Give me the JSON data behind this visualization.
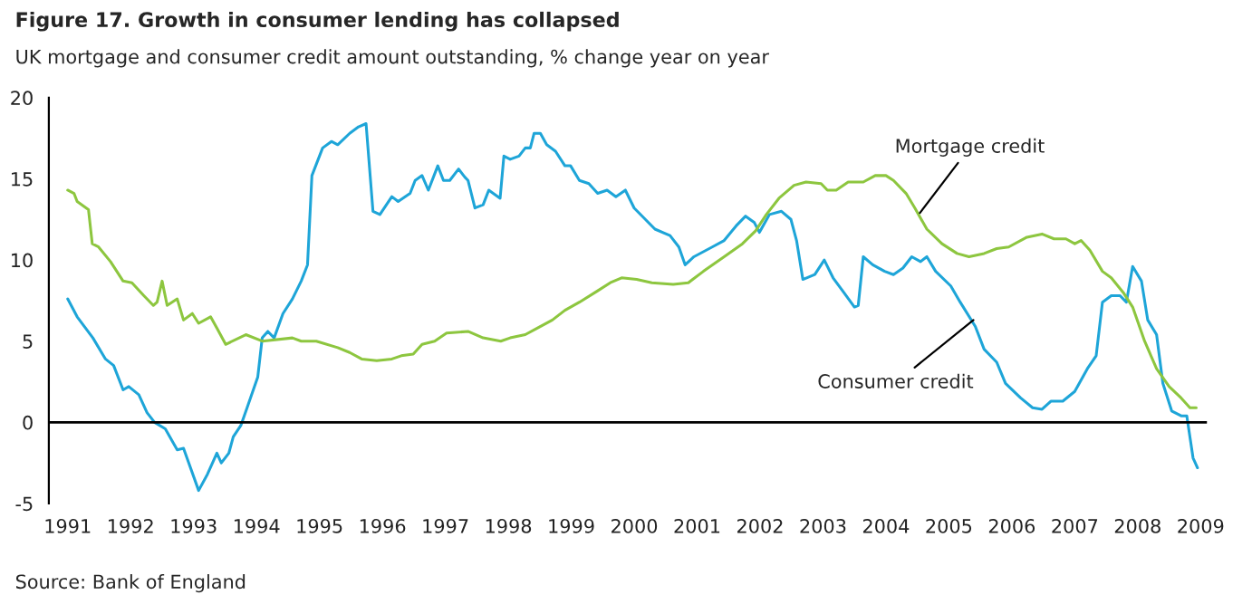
{
  "chart_data": {
    "type": "line",
    "title": "Figure 17. Growth in consumer lending has collapsed",
    "subtitle": "UK mortgage and consumer credit amount outstanding, % change year on year",
    "xlim": [
      1990.7,
      2009.1
    ],
    "xticks": [
      1991,
      1992,
      1993,
      1994,
      1995,
      1996,
      1997,
      1998,
      1999,
      2000,
      2001,
      2002,
      2003,
      2004,
      2005,
      2006,
      2007,
      2008,
      2009
    ],
    "ylim": [
      -5,
      20
    ],
    "yticks": [
      -5,
      0,
      5,
      10,
      15,
      20
    ],
    "grid": false,
    "legend": false,
    "marker": "none",
    "line_style": "solid",
    "ref_lines": [
      {
        "axis": "y",
        "value": 0,
        "label": null,
        "color": "#000000"
      }
    ],
    "series": [
      {
        "color": "#1ea5d8",
        "x": [
          1991.0,
          1991.15,
          1991.4,
          1991.6,
          1991.73,
          1991.88,
          1991.97,
          1992.13,
          1992.26,
          1992.38,
          1992.55,
          1992.74,
          1992.84,
          1993.08,
          1993.22,
          1993.37,
          1993.44,
          1993.56,
          1993.63,
          1993.75,
          1993.85,
          1994.02,
          1994.09,
          1994.18,
          1994.28,
          1994.42,
          1994.57,
          1994.71,
          1994.81,
          1994.88,
          1995.05,
          1995.19,
          1995.29,
          1995.48,
          1995.62,
          1995.74,
          1995.85,
          1995.96,
          1996.15,
          1996.25,
          1996.44,
          1996.52,
          1996.63,
          1996.73,
          1996.88,
          1996.97,
          1997.07,
          1997.21,
          1997.31,
          1997.36,
          1997.47,
          1997.6,
          1997.69,
          1997.87,
          1997.93,
          1998.03,
          1998.17,
          1998.27,
          1998.35,
          1998.41,
          1998.51,
          1998.61,
          1998.75,
          1998.9,
          1998.99,
          1999.13,
          1999.28,
          1999.42,
          1999.57,
          1999.71,
          1999.86,
          2000.0,
          2000.33,
          2000.57,
          2000.71,
          2000.81,
          2000.95,
          2001.24,
          2001.43,
          2001.62,
          2001.77,
          2001.91,
          2001.99,
          2002.15,
          2002.34,
          2002.49,
          2002.58,
          2002.68,
          2002.87,
          2003.02,
          2003.16,
          2003.33,
          2003.5,
          2003.56,
          2003.64,
          2003.79,
          2003.98,
          2004.12,
          2004.27,
          2004.41,
          2004.55,
          2004.65,
          2004.79,
          2005.03,
          2005.18,
          2005.42,
          2005.56,
          2005.76,
          2005.9,
          2006.14,
          2006.33,
          2006.48,
          2006.62,
          2006.81,
          2007.0,
          2007.2,
          2007.34,
          2007.44,
          2007.58,
          2007.72,
          2007.82,
          2007.92,
          2008.06,
          2008.16,
          2008.3,
          2008.4,
          2008.54,
          2008.69,
          2008.78,
          2008.88,
          2008.95
        ],
        "values": [
          7.6,
          6.5,
          5.2,
          3.9,
          3.5,
          2.0,
          2.2,
          1.7,
          0.6,
          0,
          -0.4,
          -1.7,
          -1.6,
          -4.2,
          -3.2,
          -1.9,
          -2.5,
          -1.9,
          -0.9,
          -0.2,
          0.9,
          2.8,
          5.2,
          5.6,
          5.2,
          6.7,
          7.6,
          8.7,
          9.7,
          15.2,
          16.9,
          17.3,
          17.1,
          17.8,
          18.2,
          18.4,
          13.0,
          12.8,
          13.9,
          13.6,
          14.1,
          14.9,
          15.2,
          14.3,
          15.8,
          14.9,
          14.9,
          15.6,
          15.1,
          14.9,
          13.2,
          13.4,
          14.3,
          13.8,
          16.4,
          16.2,
          16.4,
          16.9,
          16.9,
          17.8,
          17.8,
          17.1,
          16.7,
          15.8,
          15.8,
          14.9,
          14.7,
          14.1,
          14.3,
          13.9,
          14.3,
          13.2,
          11.9,
          11.5,
          10.8,
          9.7,
          10.2,
          10.8,
          11.2,
          12.1,
          12.7,
          12.3,
          11.7,
          12.8,
          13.0,
          12.5,
          11.2,
          8.8,
          9.1,
          10.0,
          8.9,
          8.0,
          7.1,
          7.2,
          10.2,
          9.7,
          9.3,
          9.1,
          9.5,
          10.2,
          9.9,
          10.2,
          9.3,
          8.4,
          7.4,
          5.9,
          4.5,
          3.7,
          2.4,
          1.5,
          0.9,
          0.8,
          1.3,
          1.3,
          1.9,
          3.3,
          4.1,
          7.4,
          7.8,
          7.8,
          7.4,
          9.6,
          8.7,
          6.3,
          5.4,
          2.4,
          0.7,
          0.4,
          0.4,
          -2.2,
          -2.8
        ]
      },
      {
        "color": "#8dc63f",
        "x": [
          1991.0,
          1991.1,
          1991.15,
          1991.33,
          1991.39,
          1991.49,
          1991.68,
          1991.88,
          1992.02,
          1992.21,
          1992.36,
          1992.42,
          1992.5,
          1992.58,
          1992.74,
          1992.84,
          1992.98,
          1993.08,
          1993.27,
          1993.37,
          1993.51,
          1993.83,
          1994.09,
          1994.57,
          1994.71,
          1994.95,
          1995.29,
          1995.48,
          1995.67,
          1995.91,
          1996.15,
          1996.3,
          1996.49,
          1996.63,
          1996.83,
          1997.02,
          1997.36,
          1997.6,
          1997.88,
          1998.03,
          1998.27,
          1998.46,
          1998.7,
          1998.9,
          1999.13,
          1999.42,
          1999.62,
          1999.8,
          2000.04,
          2000.28,
          2000.62,
          2000.86,
          2001.1,
          2001.43,
          2001.72,
          2001.93,
          2002.1,
          2002.3,
          2002.54,
          2002.73,
          2002.97,
          2003.07,
          2003.21,
          2003.4,
          2003.64,
          2003.83,
          2004.0,
          2004.12,
          2004.32,
          2004.46,
          2004.65,
          2004.89,
          2005.13,
          2005.32,
          2005.56,
          2005.76,
          2005.95,
          2006.24,
          2006.48,
          2006.67,
          2006.86,
          2007.0,
          2007.1,
          2007.24,
          2007.44,
          2007.58,
          2007.77,
          2007.92,
          2008.11,
          2008.3,
          2008.5,
          2008.69,
          2008.83,
          2008.93
        ],
        "values": [
          14.3,
          14.1,
          13.6,
          13.1,
          11.0,
          10.8,
          9.9,
          8.7,
          8.6,
          7.8,
          7.2,
          7.4,
          8.7,
          7.2,
          7.6,
          6.3,
          6.7,
          6.1,
          6.5,
          5.8,
          4.8,
          5.4,
          5.0,
          5.2,
          5.0,
          5.0,
          4.6,
          4.3,
          3.9,
          3.8,
          3.9,
          4.1,
          4.2,
          4.8,
          5.0,
          5.5,
          5.6,
          5.2,
          5.0,
          5.2,
          5.4,
          5.8,
          6.3,
          6.9,
          7.4,
          8.1,
          8.6,
          8.9,
          8.8,
          8.6,
          8.5,
          8.6,
          9.3,
          10.2,
          11.0,
          11.8,
          12.8,
          13.8,
          14.6,
          14.8,
          14.7,
          14.3,
          14.3,
          14.8,
          14.8,
          15.2,
          15.2,
          14.9,
          14.1,
          13.2,
          11.9,
          11.0,
          10.4,
          10.2,
          10.4,
          10.7,
          10.8,
          11.4,
          11.6,
          11.3,
          11.3,
          11.0,
          11.2,
          10.6,
          9.3,
          8.9,
          8.0,
          7.1,
          5.0,
          3.3,
          2.2,
          1.5,
          0.9,
          0.9
        ]
      }
    ],
    "annotations": [
      {
        "text": "Mortgage credit",
        "x": 2004.54,
        "y": 12.9
      },
      {
        "text": "Consumer credit",
        "x": 2005.39,
        "y": 6.3
      },
      "Source: Bank of England"
    ]
  }
}
